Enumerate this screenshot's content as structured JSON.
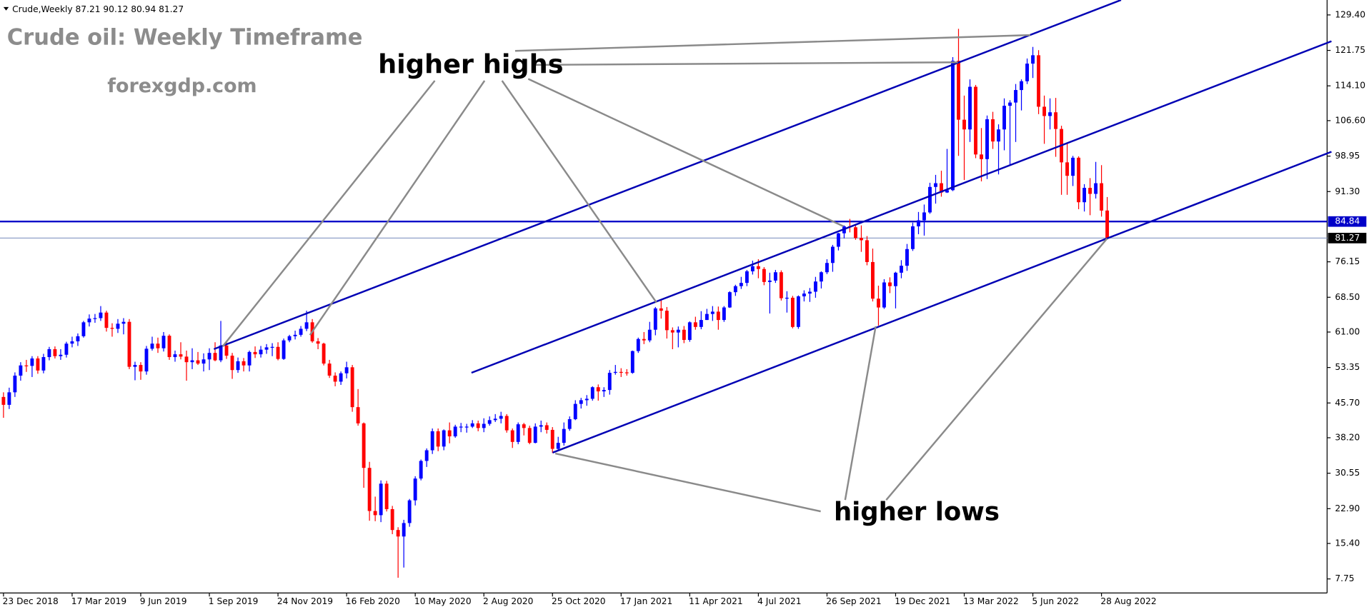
{
  "chart_data": {
    "type": "candlestick",
    "symbol_info": "Crude,Weekly 87.21 90.12 80.94 81.27",
    "title": "Crude oil: Weekly Timeframe",
    "watermark": "forexgdp.com",
    "annotations": [
      "higher highs",
      "higher lows"
    ],
    "up_color": "#0000ff",
    "down_color": "#ff0000",
    "categories": [
      "23 Dec 2018",
      null,
      null,
      null,
      null,
      null,
      null,
      null,
      null,
      null,
      null,
      null,
      "17 Mar 2019",
      null,
      null,
      null,
      null,
      null,
      null,
      null,
      null,
      null,
      null,
      null,
      "9 Jun 2019",
      null,
      null,
      null,
      null,
      null,
      null,
      null,
      null,
      null,
      null,
      null,
      "1 Sep 2019",
      null,
      null,
      null,
      null,
      null,
      null,
      null,
      null,
      null,
      null,
      null,
      "24 Nov 2019",
      null,
      null,
      null,
      null,
      null,
      null,
      null,
      null,
      null,
      null,
      null,
      "16 Feb 2020",
      null,
      null,
      null,
      null,
      null,
      null,
      null,
      null,
      null,
      null,
      null,
      "10 May 2020",
      null,
      null,
      null,
      null,
      null,
      null,
      null,
      null,
      null,
      null,
      null,
      "2 Aug 2020",
      null,
      null,
      null,
      null,
      null,
      null,
      null,
      null,
      null,
      null,
      null,
      "25 Oct 2020",
      null,
      null,
      null,
      null,
      null,
      null,
      null,
      null,
      null,
      null,
      null,
      "17 Jan 2021",
      null,
      null,
      null,
      null,
      null,
      null,
      null,
      null,
      null,
      null,
      null,
      "11 Apr 2021",
      null,
      null,
      null,
      null,
      null,
      null,
      null,
      null,
      null,
      null,
      null,
      "4 Jul 2021",
      null,
      null,
      null,
      null,
      null,
      null,
      null,
      null,
      null,
      null,
      null,
      "26 Sep 2021",
      null,
      null,
      null,
      null,
      null,
      null,
      null,
      null,
      null,
      null,
      null,
      "19 Dec 2021",
      null,
      null,
      null,
      null,
      null,
      null,
      null,
      null,
      null,
      null,
      null,
      "13 Mar 2022",
      null,
      null,
      null,
      null,
      null,
      null,
      null,
      null,
      null,
      null,
      null,
      "5 Jun 2022",
      null,
      null,
      null,
      null,
      null,
      null,
      null,
      null,
      null,
      null,
      null,
      "28 Aug 2022",
      null
    ],
    "open": [
      47.0,
      45.3,
      48.0,
      51.6,
      53.8,
      53.7,
      55.3,
      52.7,
      55.6,
      57.3,
      55.8,
      56.1,
      58.5,
      59.0,
      60.1,
      63.1,
      63.9,
      64.0,
      65.2,
      61.9,
      61.7,
      62.8,
      63.2,
      53.5,
      53.9,
      52.5,
      57.4,
      58.5,
      57.5,
      60.2,
      55.6,
      56.2,
      55.7,
      54.5,
      54.9,
      54.2,
      55.1,
      56.5,
      54.9,
      58.1,
      55.9,
      52.8,
      54.7,
      53.8,
      56.7,
      56.2,
      57.2,
      57.7,
      57.8,
      55.2,
      59.2,
      60.1,
      60.4,
      61.7,
      63.1,
      59.0,
      58.5,
      54.2,
      51.6,
      50.3,
      52.1,
      53.4,
      44.8,
      41.3,
      31.7,
      22.4,
      21.5,
      28.3,
      22.8,
      18.3,
      16.9,
      19.8,
      24.7,
      29.4,
      33.2,
      35.5,
      39.6,
      36.3,
      39.8,
      38.5,
      40.6,
      40.6,
      40.6,
      41.3,
      40.3,
      41.2,
      42.0,
      42.3,
      42.9,
      39.8,
      37.3,
      41.1,
      40.3,
      37.1,
      40.6,
      40.9,
      39.9,
      35.8,
      37.1,
      40.1,
      42.2,
      45.5,
      46.3,
      46.6,
      49.1,
      48.2,
      48.5,
      52.2,
      52.4,
      52.3,
      52.2,
      56.9,
      59.5,
      59.2,
      61.5,
      66.1,
      65.6,
      61.4,
      60.9,
      61.5,
      59.3,
      63.1,
      62.1,
      63.6,
      64.9,
      65.4,
      63.6,
      66.3,
      69.6,
      70.9,
      71.6,
      74.1,
      75.2,
      74.6,
      71.8,
      72.1,
      73.9,
      68.3,
      68.4,
      62.1,
      68.7,
      69.3,
      69.7,
      71.9,
      73.9,
      75.9,
      79.4,
      82.3,
      83.8,
      83.6,
      81.3,
      80.8,
      76.1,
      68.2,
      66.3,
      71.7,
      70.9,
      73.8,
      75.3,
      78.9,
      83.8,
      85.1,
      86.8,
      92.3,
      93.1,
      91.1,
      91.6,
      119.5,
      106.8,
      104.7,
      113.9,
      99.3,
      98.3,
      106.9,
      102.1,
      104.7,
      109.8,
      110.5,
      113.2,
      115.1,
      118.9,
      120.7,
      109.6,
      107.6,
      108.4,
      104.8,
      97.6,
      94.7,
      98.6,
      89.0,
      92.1,
      90.8,
      93.1,
      87.21
    ],
    "high": [
      48.0,
      49.0,
      52.3,
      54.5,
      55.0,
      55.8,
      55.8,
      56.3,
      57.8,
      57.9,
      57.3,
      58.9,
      60.0,
      60.7,
      63.4,
      64.8,
      64.9,
      66.6,
      65.6,
      62.9,
      63.8,
      64.0,
      63.8,
      54.6,
      54.5,
      58.0,
      60.0,
      59.8,
      61.0,
      60.5,
      57.0,
      58.8,
      57.0,
      57.5,
      56.7,
      56.4,
      57.5,
      58.8,
      63.4,
      59.0,
      56.5,
      55.5,
      55.4,
      57.0,
      57.9,
      58.0,
      58.4,
      58.6,
      58.8,
      59.6,
      60.4,
      61.3,
      62.3,
      65.6,
      63.8,
      59.7,
      58.7,
      55.0,
      52.3,
      52.5,
      54.6,
      53.9,
      48.7,
      41.5,
      33.0,
      25.5,
      29.0,
      28.9,
      23.5,
      18.9,
      20.5,
      25.0,
      29.9,
      33.5,
      35.9,
      40.2,
      40.2,
      40.0,
      41.5,
      41.0,
      41.4,
      41.2,
      42.0,
      41.9,
      42.4,
      42.8,
      43.3,
      43.8,
      43.3,
      40.2,
      41.5,
      41.4,
      40.8,
      41.3,
      41.9,
      41.5,
      40.5,
      38.4,
      41.5,
      42.8,
      46.3,
      46.8,
      47.4,
      49.3,
      49.7,
      49.1,
      52.8,
      53.9,
      53.2,
      53.0,
      57.0,
      59.8,
      61.0,
      63.2,
      66.4,
      67.9,
      66.4,
      62.0,
      62.2,
      62.3,
      63.3,
      64.3,
      65.5,
      66.0,
      66.6,
      66.5,
      66.6,
      69.8,
      71.2,
      72.9,
      74.4,
      76.4,
      76.7,
      75.0,
      73.8,
      74.4,
      74.3,
      69.8,
      68.8,
      68.9,
      70.0,
      70.5,
      72.9,
      74.1,
      76.7,
      79.8,
      82.4,
      84.0,
      85.4,
      84.1,
      84.0,
      81.7,
      79.0,
      71.0,
      72.4,
      72.8,
      74.0,
      76.5,
      80.0,
      84.6,
      86.9,
      88.5,
      93.2,
      94.9,
      95.8,
      100.5,
      120.3,
      126.4,
      112.0,
      115.5,
      114.3,
      105.0,
      107.7,
      108.5,
      105.8,
      111.4,
      111.0,
      114.5,
      115.5,
      120.0,
      122.5,
      121.8,
      112.0,
      111.4,
      111.5,
      105.5,
      101.9,
      99.0,
      98.9,
      92.9,
      94.2,
      97.7,
      97.0,
      90.12
    ],
    "low": [
      42.5,
      44.4,
      47.0,
      50.5,
      52.4,
      51.3,
      52.0,
      52.1,
      54.9,
      55.3,
      55.0,
      55.5,
      57.7,
      58.0,
      59.8,
      62.2,
      63.0,
      63.4,
      61.1,
      60.0,
      60.8,
      60.5,
      53.0,
      50.6,
      50.7,
      51.8,
      57.0,
      56.5,
      56.8,
      55.0,
      54.6,
      55.1,
      50.5,
      53.0,
      53.9,
      52.5,
      52.8,
      54.7,
      54.5,
      55.2,
      50.9,
      52.2,
      52.5,
      52.5,
      55.4,
      55.5,
      56.3,
      55.8,
      54.9,
      55.0,
      58.8,
      59.4,
      60.0,
      61.2,
      58.7,
      57.3,
      53.8,
      51.1,
      49.3,
      49.6,
      51.0,
      43.8,
      40.8,
      27.4,
      20.3,
      20.2,
      20.0,
      22.3,
      17.4,
      8.0,
      10.2,
      19.0,
      23.6,
      29.0,
      31.9,
      34.7,
      35.3,
      35.5,
      37.0,
      38.2,
      39.4,
      39.3,
      40.3,
      39.6,
      39.4,
      40.8,
      41.6,
      41.3,
      39.3,
      36.0,
      36.8,
      38.7,
      36.8,
      37.0,
      39.4,
      39.1,
      34.9,
      35.3,
      36.5,
      39.7,
      42.0,
      44.5,
      45.1,
      46.2,
      46.2,
      47.0,
      47.5,
      51.8,
      51.3,
      51.6,
      52.0,
      56.5,
      58.4,
      58.8,
      60.3,
      63.9,
      59.6,
      57.3,
      57.7,
      58.6,
      58.9,
      61.5,
      61.6,
      63.6,
      63.4,
      61.5,
      63.2,
      66.2,
      68.8,
      70.3,
      70.9,
      73.4,
      72.6,
      71.1,
      65.0,
      71.6,
      67.8,
      65.2,
      61.8,
      61.7,
      67.6,
      67.5,
      68.4,
      70.4,
      73.5,
      74.0,
      78.6,
      81.2,
      82.5,
      80.9,
      78.3,
      75.4,
      67.6,
      62.4,
      66.0,
      69.4,
      66.1,
      72.6,
      74.2,
      78.5,
      82.1,
      81.8,
      86.5,
      88.7,
      90.2,
      91.0,
      91.4,
      99.0,
      93.8,
      102.0,
      98.5,
      93.5,
      94.0,
      100.5,
      95.0,
      100.2,
      97.0,
      102.0,
      108.8,
      114.5,
      115.8,
      108.0,
      101.6,
      104.7,
      98.8,
      90.6,
      90.6,
      92.5,
      87.5,
      87.0,
      86.2,
      89.8,
      85.9,
      80.94
    ],
    "close": [
      45.3,
      48.0,
      51.6,
      53.8,
      53.7,
      55.3,
      52.7,
      55.6,
      57.3,
      55.8,
      56.1,
      58.5,
      59.0,
      60.1,
      63.1,
      63.9,
      64.0,
      65.2,
      61.9,
      61.7,
      62.8,
      63.2,
      53.5,
      53.9,
      52.5,
      57.4,
      58.5,
      57.5,
      60.2,
      55.6,
      56.2,
      55.7,
      54.5,
      54.9,
      54.2,
      55.1,
      56.5,
      54.9,
      58.1,
      55.9,
      52.8,
      54.7,
      53.8,
      56.7,
      56.2,
      57.2,
      57.7,
      57.8,
      55.2,
      59.2,
      60.1,
      60.4,
      61.7,
      63.1,
      59.0,
      58.5,
      54.2,
      51.6,
      50.3,
      52.1,
      53.4,
      44.8,
      41.3,
      31.7,
      22.4,
      21.5,
      28.3,
      22.8,
      18.3,
      16.9,
      19.8,
      24.7,
      29.4,
      33.2,
      35.5,
      39.6,
      36.3,
      39.8,
      38.5,
      40.6,
      40.6,
      40.6,
      41.3,
      40.3,
      41.2,
      42.0,
      42.3,
      42.9,
      39.8,
      37.3,
      41.1,
      40.3,
      37.1,
      40.6,
      40.9,
      39.9,
      35.8,
      37.1,
      40.1,
      42.2,
      45.5,
      46.3,
      46.6,
      49.1,
      48.2,
      48.5,
      52.2,
      52.4,
      52.3,
      52.2,
      56.9,
      59.5,
      59.2,
      61.5,
      66.1,
      65.6,
      61.4,
      60.9,
      61.5,
      59.3,
      63.1,
      62.1,
      63.6,
      64.9,
      65.4,
      63.6,
      66.3,
      69.6,
      70.9,
      71.6,
      74.1,
      75.2,
      74.6,
      71.8,
      72.1,
      73.9,
      68.3,
      68.4,
      62.1,
      68.7,
      69.3,
      69.7,
      71.9,
      73.9,
      75.9,
      79.4,
      82.3,
      83.8,
      83.6,
      81.3,
      80.8,
      76.1,
      68.2,
      66.3,
      71.7,
      70.9,
      73.8,
      75.3,
      78.9,
      83.8,
      85.1,
      86.8,
      92.3,
      93.1,
      91.1,
      91.6,
      119.5,
      106.8,
      104.7,
      113.9,
      99.3,
      98.3,
      106.9,
      102.1,
      104.7,
      109.8,
      110.5,
      113.2,
      115.1,
      118.9,
      120.7,
      109.6,
      107.6,
      108.4,
      104.8,
      97.6,
      94.7,
      98.6,
      89.0,
      92.1,
      90.8,
      93.1,
      87.2,
      81.27
    ],
    "ylim": [
      4.72,
      132.62
    ],
    "yticks": [
      {
        "value": 129.4,
        "label": "129.40"
      },
      121.75,
      {
        "value": 114.1,
        "label": "114.10"
      },
      {
        "value": 106.6,
        "label": "106.60"
      },
      98.95,
      {
        "value": 91.3,
        "label": "91.30"
      },
      76.15,
      {
        "value": 68.5,
        "label": "68.50"
      },
      {
        "value": 61.0,
        "label": "61.00"
      },
      53.35,
      {
        "value": 45.7,
        "label": "45.70"
      },
      {
        "value": 38.2,
        "label": "38.20"
      },
      30.55,
      {
        "value": 22.9,
        "label": "22.90"
      },
      {
        "value": 15.4,
        "label": "15.40"
      },
      7.75
    ],
    "price_lines": [
      84.84,
      81.27
    ],
    "price_line_colors": [
      "#0000c8",
      "#000000"
    ]
  }
}
